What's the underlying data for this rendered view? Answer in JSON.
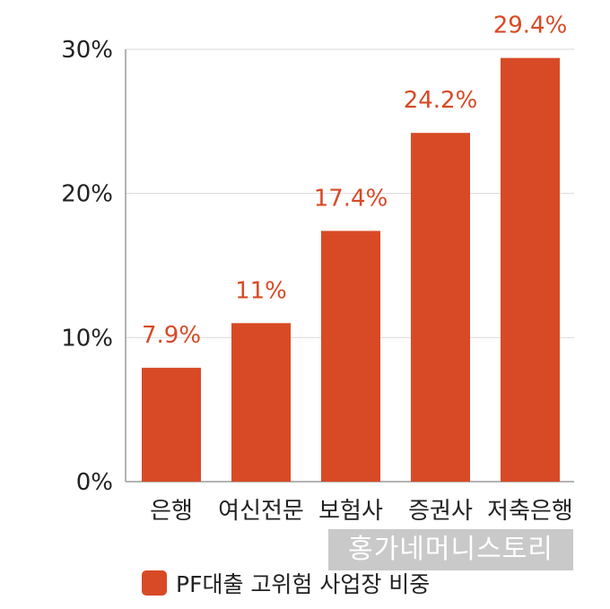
{
  "chart_data": {
    "type": "bar",
    "categories": [
      "은행",
      "여신전문",
      "보험사",
      "증권사",
      "저축은행"
    ],
    "series": [
      {
        "name": "PF대출 고위험 사업장 비중",
        "values": [
          7.9,
          11,
          17.4,
          24.2,
          29.4
        ]
      }
    ],
    "data_labels": [
      "7.9%",
      "11%",
      "17.4%",
      "24.2%",
      "29.4%"
    ],
    "y_ticks": [
      {
        "value": 0,
        "label": "0%"
      },
      {
        "value": 10,
        "label": "10%"
      },
      {
        "value": 20,
        "label": "20%"
      },
      {
        "value": 30,
        "label": "30%"
      }
    ],
    "ylim": [
      0,
      30
    ],
    "grid": true,
    "legend_position": "bottom-left",
    "bar_color": "#d84a26",
    "label_color": "#d84a26",
    "grid_color": "#d9d9d9"
  },
  "watermark": "홍가네머니스토리"
}
